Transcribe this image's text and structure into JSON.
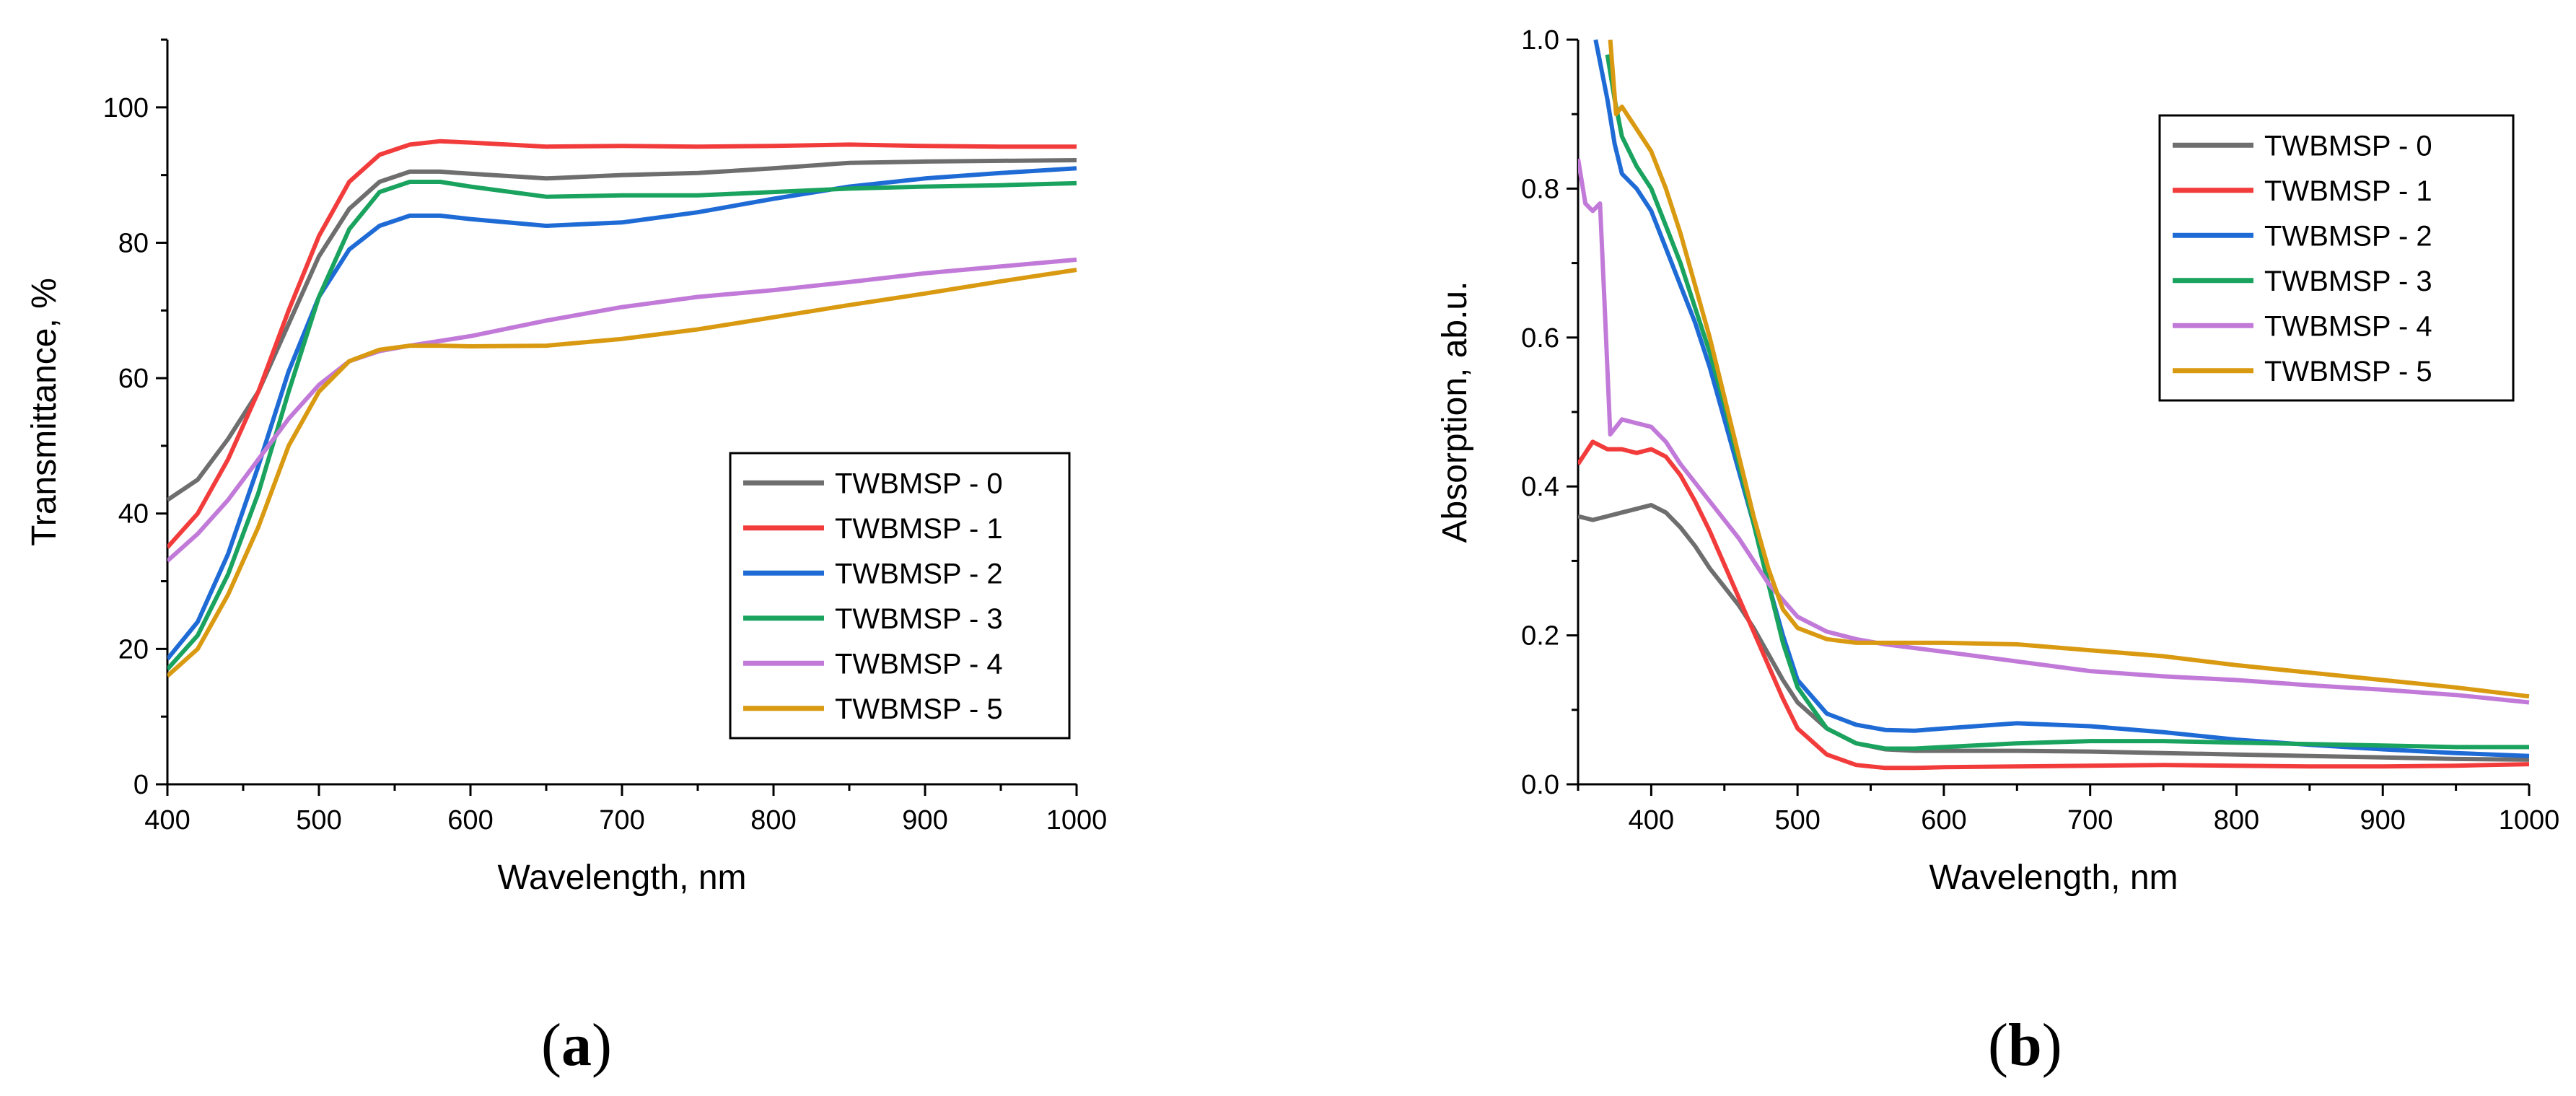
{
  "chart_data": [
    {
      "panel_label": "a",
      "type": "line",
      "xlabel": "Wavelength, nm",
      "ylabel": "Transmittance, %",
      "xlim": [
        400,
        1000
      ],
      "ylim": [
        0,
        110
      ],
      "xticks": [
        400,
        500,
        600,
        700,
        800,
        900,
        1000
      ],
      "yticks": [
        0,
        20,
        40,
        60,
        80,
        100
      ],
      "legend_position": "lower-right",
      "series": [
        {
          "name": "TWBMSP - 0",
          "color": "#6e6e6e",
          "x": [
            400,
            420,
            440,
            460,
            480,
            500,
            520,
            540,
            560,
            580,
            600,
            650,
            700,
            750,
            800,
            850,
            900,
            950,
            1000
          ],
          "y": [
            42,
            45,
            51,
            58,
            68,
            78,
            85,
            89,
            90.5,
            90.5,
            90.2,
            89.5,
            90,
            90.3,
            91,
            91.8,
            92,
            92.1,
            92.2
          ]
        },
        {
          "name": "TWBMSP - 1",
          "color": "#f23c3c",
          "x": [
            400,
            420,
            440,
            460,
            480,
            500,
            520,
            540,
            560,
            580,
            600,
            650,
            700,
            750,
            800,
            850,
            900,
            950,
            1000
          ],
          "y": [
            35,
            40,
            48,
            58,
            70,
            81,
            89,
            93,
            94.5,
            95,
            94.8,
            94.2,
            94.3,
            94.2,
            94.3,
            94.5,
            94.3,
            94.2,
            94.2
          ]
        },
        {
          "name": "TWBMSP - 2",
          "color": "#1f6bd6",
          "x": [
            400,
            420,
            440,
            460,
            480,
            500,
            520,
            540,
            560,
            580,
            600,
            650,
            700,
            750,
            800,
            850,
            900,
            950,
            1000
          ],
          "y": [
            18.5,
            24,
            34,
            47,
            61,
            72,
            79,
            82.5,
            84,
            84,
            83.5,
            82.5,
            83,
            84.5,
            86.5,
            88.3,
            89.5,
            90.3,
            91
          ]
        },
        {
          "name": "TWBMSP - 3",
          "color": "#1aa35f",
          "x": [
            400,
            420,
            440,
            460,
            480,
            500,
            520,
            540,
            560,
            580,
            600,
            650,
            700,
            750,
            800,
            850,
            900,
            950,
            1000
          ],
          "y": [
            17,
            22,
            31,
            43,
            58,
            72,
            82,
            87.5,
            89,
            89,
            88.3,
            86.8,
            87,
            87,
            87.5,
            88,
            88.3,
            88.5,
            88.8
          ]
        },
        {
          "name": "TWBMSP - 4",
          "color": "#c27ad9",
          "x": [
            400,
            420,
            440,
            460,
            480,
            500,
            520,
            540,
            560,
            580,
            600,
            650,
            700,
            750,
            800,
            850,
            900,
            950,
            1000
          ],
          "y": [
            33,
            37,
            42,
            48,
            54,
            59,
            62.5,
            64,
            64.8,
            65.5,
            66.2,
            68.5,
            70.5,
            72,
            73,
            74.2,
            75.5,
            76.5,
            77.5
          ]
        },
        {
          "name": "TWBMSP - 5",
          "color": "#d99a12",
          "x": [
            400,
            420,
            440,
            460,
            480,
            500,
            520,
            540,
            560,
            580,
            600,
            650,
            700,
            750,
            800,
            850,
            900,
            950,
            1000
          ],
          "y": [
            16,
            20,
            28,
            38,
            50,
            58,
            62.5,
            64.2,
            64.8,
            64.8,
            64.7,
            64.8,
            65.8,
            67.2,
            69,
            70.8,
            72.5,
            74.3,
            76
          ]
        }
      ]
    },
    {
      "panel_label": "b",
      "type": "line",
      "xlabel": "Wavelength, nm",
      "ylabel": "Absorption, ab.u.",
      "xlim": [
        350,
        1000
      ],
      "ylim": [
        0,
        1.0
      ],
      "xticks": [
        400,
        500,
        600,
        700,
        800,
        900,
        1000
      ],
      "yticks": [
        0.0,
        0.2,
        0.4,
        0.6,
        0.8,
        1.0
      ],
      "legend_position": "upper-right",
      "series": [
        {
          "name": "TWBMSP - 0",
          "color": "#6e6e6e",
          "x": [
            350,
            360,
            370,
            380,
            390,
            400,
            410,
            420,
            430,
            440,
            450,
            460,
            470,
            480,
            490,
            500,
            520,
            540,
            560,
            580,
            600,
            650,
            700,
            750,
            800,
            850,
            900,
            950,
            1000
          ],
          "y": [
            0.36,
            0.355,
            0.36,
            0.365,
            0.37,
            0.375,
            0.365,
            0.345,
            0.32,
            0.29,
            0.265,
            0.24,
            0.21,
            0.175,
            0.14,
            0.11,
            0.075,
            0.055,
            0.047,
            0.045,
            0.045,
            0.045,
            0.044,
            0.042,
            0.04,
            0.038,
            0.036,
            0.034,
            0.033
          ]
        },
        {
          "name": "TWBMSP - 1",
          "color": "#f23c3c",
          "x": [
            350,
            360,
            370,
            380,
            390,
            400,
            410,
            420,
            430,
            440,
            450,
            460,
            470,
            480,
            490,
            500,
            520,
            540,
            560,
            580,
            600,
            650,
            700,
            750,
            800,
            850,
            900,
            950,
            1000
          ],
          "y": [
            0.43,
            0.46,
            0.45,
            0.45,
            0.445,
            0.45,
            0.44,
            0.415,
            0.38,
            0.34,
            0.295,
            0.25,
            0.205,
            0.16,
            0.115,
            0.075,
            0.04,
            0.026,
            0.022,
            0.022,
            0.023,
            0.024,
            0.025,
            0.026,
            0.025,
            0.024,
            0.024,
            0.025,
            0.027
          ]
        },
        {
          "name": "TWBMSP - 2",
          "color": "#1f6bd6",
          "x": [
            362,
            370,
            375,
            380,
            390,
            400,
            410,
            420,
            430,
            440,
            450,
            460,
            470,
            480,
            490,
            500,
            520,
            540,
            560,
            580,
            600,
            650,
            700,
            750,
            800,
            850,
            900,
            950,
            1000
          ],
          "y": [
            1.0,
            0.92,
            0.86,
            0.82,
            0.8,
            0.77,
            0.72,
            0.67,
            0.62,
            0.56,
            0.49,
            0.42,
            0.35,
            0.27,
            0.2,
            0.14,
            0.095,
            0.08,
            0.073,
            0.072,
            0.075,
            0.082,
            0.078,
            0.07,
            0.06,
            0.053,
            0.047,
            0.042,
            0.038
          ]
        },
        {
          "name": "TWBMSP - 3",
          "color": "#1aa35f",
          "x": [
            370,
            375,
            380,
            390,
            400,
            410,
            420,
            430,
            440,
            450,
            460,
            470,
            480,
            490,
            500,
            520,
            540,
            560,
            580,
            600,
            650,
            700,
            750,
            800,
            850,
            900,
            950,
            1000
          ],
          "y": [
            0.98,
            0.92,
            0.87,
            0.83,
            0.8,
            0.75,
            0.7,
            0.64,
            0.58,
            0.51,
            0.43,
            0.35,
            0.27,
            0.19,
            0.13,
            0.075,
            0.055,
            0.048,
            0.048,
            0.05,
            0.055,
            0.058,
            0.058,
            0.056,
            0.054,
            0.052,
            0.05,
            0.05
          ]
        },
        {
          "name": "TWBMSP - 4",
          "color": "#c27ad9",
          "x": [
            350,
            355,
            360,
            365,
            368,
            372,
            380,
            390,
            400,
            410,
            420,
            440,
            460,
            480,
            500,
            520,
            540,
            560,
            600,
            650,
            700,
            750,
            800,
            850,
            900,
            950,
            1000
          ],
          "y": [
            0.84,
            0.78,
            0.77,
            0.78,
            0.65,
            0.47,
            0.49,
            0.485,
            0.48,
            0.46,
            0.43,
            0.38,
            0.33,
            0.27,
            0.225,
            0.205,
            0.195,
            0.188,
            0.178,
            0.165,
            0.152,
            0.145,
            0.14,
            0.133,
            0.127,
            0.12,
            0.11
          ]
        },
        {
          "name": "TWBMSP - 5",
          "color": "#d99a12",
          "x": [
            372,
            376,
            380,
            390,
            400,
            410,
            420,
            430,
            440,
            450,
            460,
            470,
            480,
            490,
            500,
            520,
            540,
            560,
            600,
            650,
            700,
            750,
            800,
            850,
            900,
            950,
            1000
          ],
          "y": [
            1.0,
            0.9,
            0.91,
            0.88,
            0.85,
            0.8,
            0.74,
            0.67,
            0.6,
            0.52,
            0.44,
            0.36,
            0.29,
            0.235,
            0.21,
            0.195,
            0.19,
            0.19,
            0.19,
            0.188,
            0.18,
            0.172,
            0.16,
            0.15,
            0.14,
            0.13,
            0.118
          ]
        }
      ]
    }
  ]
}
